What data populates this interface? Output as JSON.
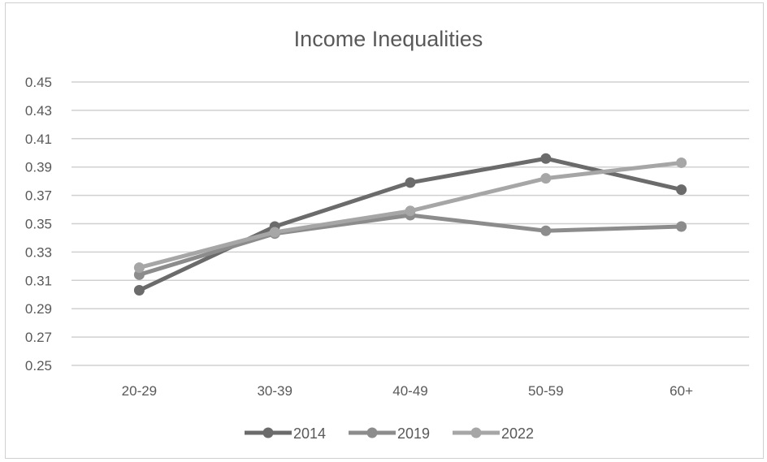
{
  "chart_data": {
    "type": "line",
    "title": "Income Inequalities",
    "categories": [
      "20-29",
      "30-39",
      "40-49",
      "50-59",
      "60+"
    ],
    "ylim": [
      0.25,
      0.45
    ],
    "yticks": [
      "0.45",
      "0.43",
      "0.41",
      "0.39",
      "0.37",
      "0.35",
      "0.33",
      "0.31",
      "0.29",
      "0.27",
      "0.25"
    ],
    "grid": true,
    "legend_position": "bottom",
    "series": [
      {
        "name": "2014",
        "color": "#6b6b6b",
        "values": [
          0.303,
          0.348,
          0.379,
          0.396,
          0.374
        ]
      },
      {
        "name": "2019",
        "color": "#8c8c8c",
        "values": [
          0.314,
          0.343,
          0.356,
          0.345,
          0.348
        ]
      },
      {
        "name": "2022",
        "color": "#a6a6a6",
        "values": [
          0.319,
          0.344,
          0.359,
          0.382,
          0.393
        ]
      }
    ]
  }
}
